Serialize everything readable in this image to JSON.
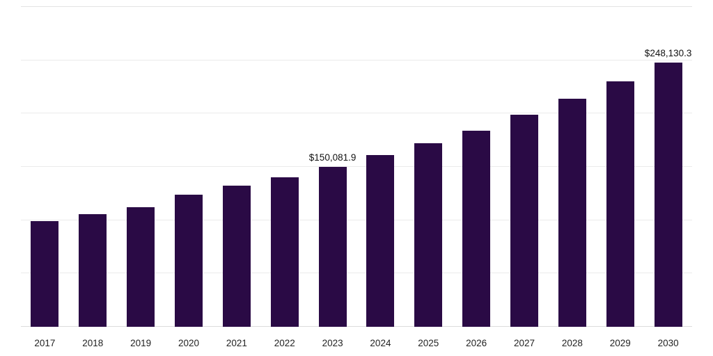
{
  "chart_data": {
    "type": "bar",
    "title": "",
    "xlabel": "",
    "ylabel": "",
    "categories": [
      "2017",
      "2018",
      "2019",
      "2020",
      "2021",
      "2022",
      "2023",
      "2024",
      "2025",
      "2026",
      "2027",
      "2028",
      "2029",
      "2030"
    ],
    "values": [
      99400,
      105800,
      112200,
      123800,
      132100,
      140500,
      150081.9,
      161000,
      171900,
      184100,
      198800,
      213600,
      230300,
      248130.3
    ],
    "data_labels": [
      "",
      "",
      "",
      "",
      "",
      "",
      "$150,081.9",
      "",
      "",
      "",
      "",
      "",
      "",
      "$248,130.3"
    ],
    "ylim": [
      0,
      300000
    ],
    "grid": true,
    "grid_step": 50000,
    "legend": false
  },
  "style": {
    "bar_color": "#2a0a45",
    "grid_color": "#ebebeb",
    "top_grid_color": "#e3e3e3",
    "axis_line_color": "#dcdcdc",
    "value_label_color": "#111111",
    "tick_label_color": "#222222",
    "background_color": "#ffffff"
  }
}
